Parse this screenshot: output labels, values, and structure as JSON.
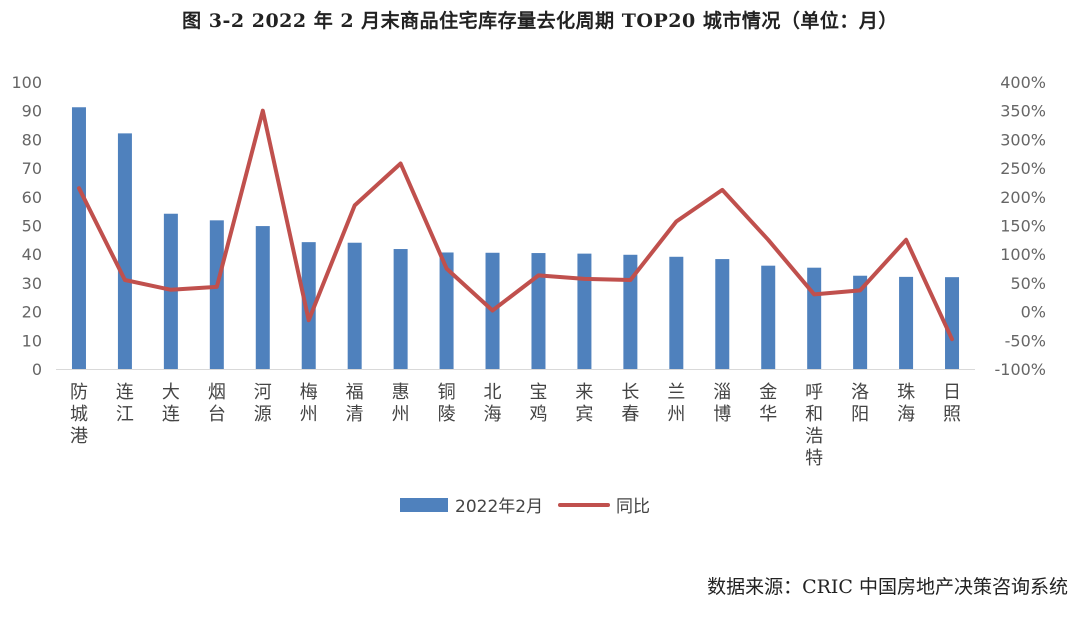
{
  "chart_data": {
    "type": "bar",
    "title": "图 3-2 2022 年 2 月末商品住宅库存量去化周期 TOP20 城市情况（单位：月）",
    "categories": [
      "防城港",
      "连江",
      "大连",
      "烟台",
      "河源",
      "梅州",
      "福清",
      "惠州",
      "铜陵",
      "北海",
      "宝鸡",
      "来宾",
      "长春",
      "兰州",
      "淄博",
      "金华",
      "呼和浩特",
      "洛阳",
      "珠海",
      "日照"
    ],
    "series": [
      {
        "name": "2022年2月",
        "type": "bar",
        "axis": "left",
        "color": "#4F81BD",
        "values": [
          91.2,
          82.1,
          54.1,
          51.8,
          49.8,
          44.2,
          44.0,
          41.8,
          40.6,
          40.5,
          40.4,
          40.2,
          39.8,
          39.1,
          38.3,
          36.0,
          35.3,
          32.5,
          32.1,
          32.0
        ]
      },
      {
        "name": "同比",
        "type": "line",
        "axis": "right",
        "color": "#C0504D",
        "values": [
          215,
          55,
          38,
          43,
          350,
          -15,
          185,
          258,
          75,
          2,
          63,
          57,
          55,
          157,
          212,
          125,
          30,
          37,
          125,
          -48
        ]
      }
    ],
    "left_axis": {
      "min": 0,
      "max": 100,
      "ticks": [
        "0",
        "10",
        "20",
        "30",
        "40",
        "50",
        "60",
        "70",
        "80",
        "90",
        "100"
      ]
    },
    "right_axis": {
      "min": -100,
      "max": 400,
      "ticks": [
        "-100%",
        "-50%",
        "0%",
        "50%",
        "100%",
        "150%",
        "200%",
        "250%",
        "300%",
        "350%",
        "400%"
      ]
    },
    "legend_position": "bottom",
    "grid": false
  },
  "source": "数据来源：CRIC 中国房地产决策咨询系统"
}
